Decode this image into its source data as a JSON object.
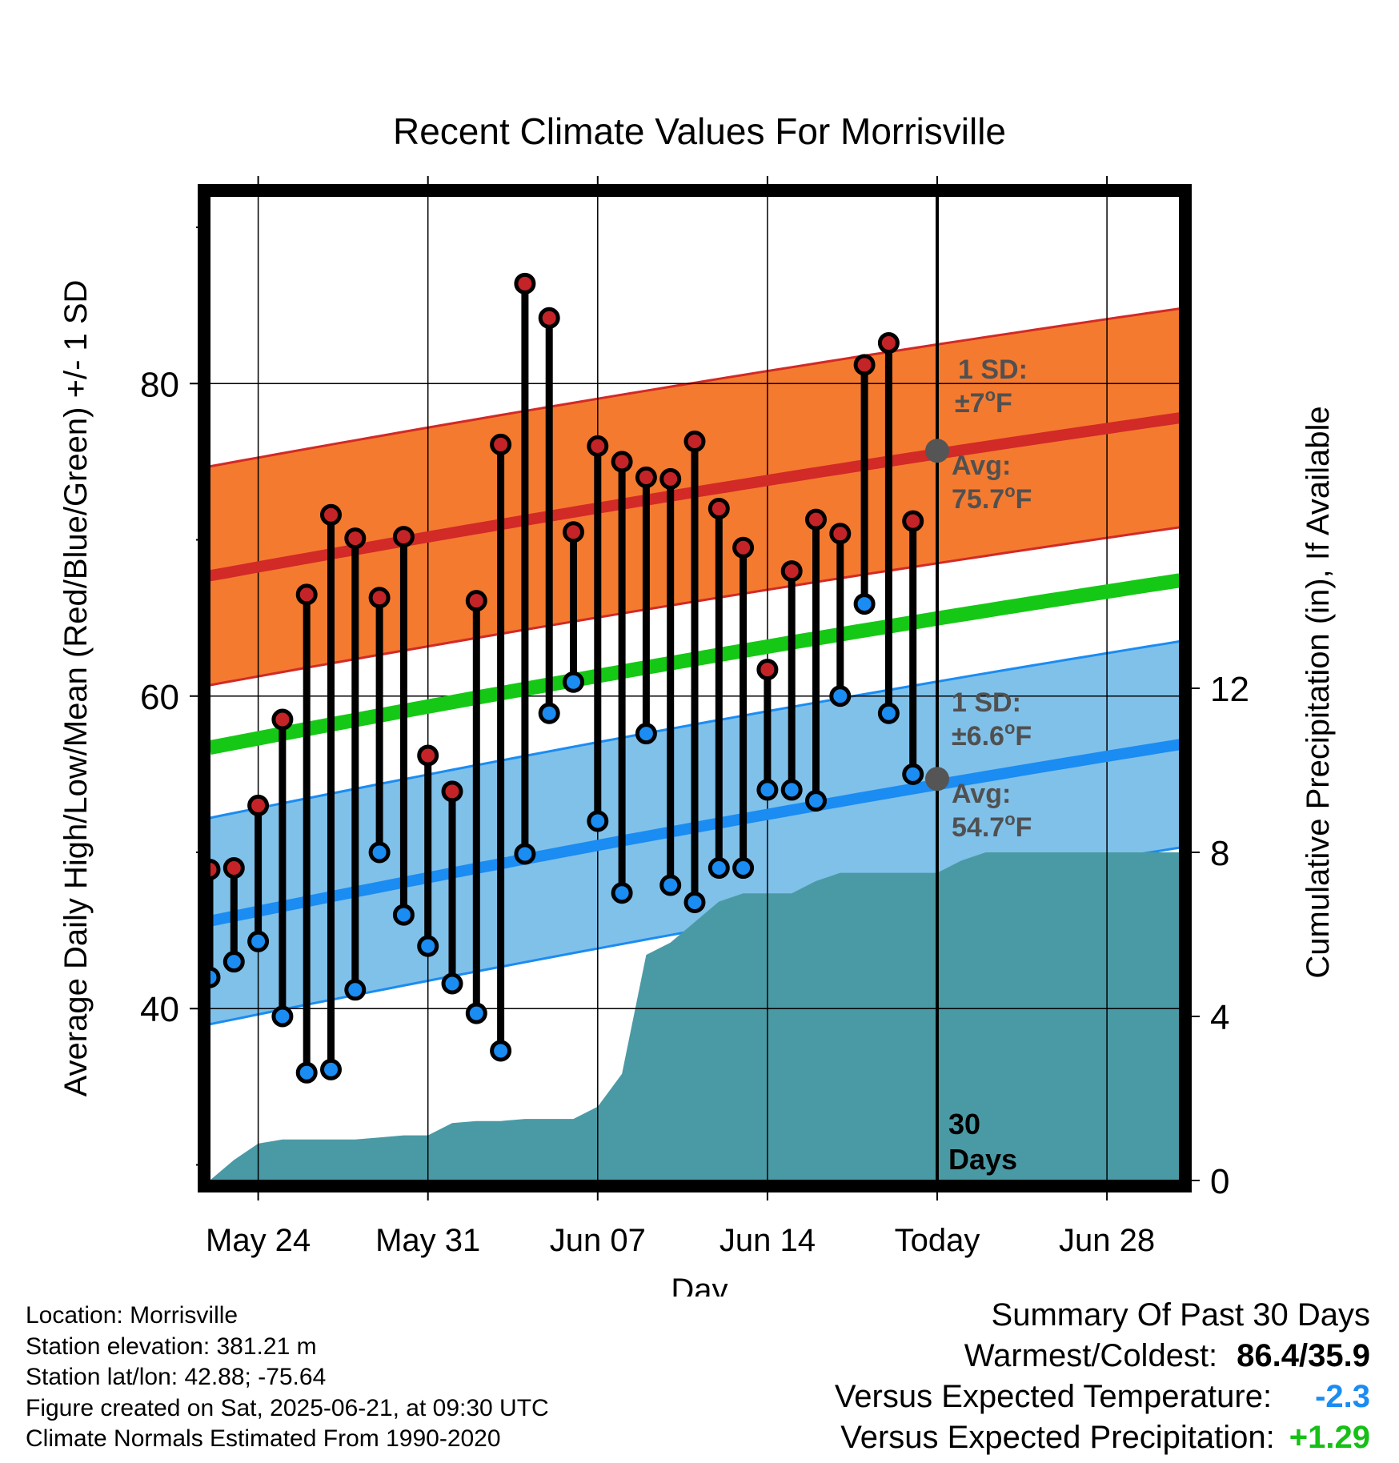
{
  "chart_data": {
    "type": "line",
    "title": "Recent Climate Values For Morrisville",
    "xlabel": "Day",
    "ylabel": "Average Daily High/Low/Mean (Red/Blue/Green) +/- 1 SD",
    "y2label": "Cumulative Precipitation (in), If Available",
    "x_ticks": [
      "May 24",
      "May 31",
      "Jun 07",
      "Jun 14",
      "Today",
      "Jun 28"
    ],
    "x_tick_days": [
      3,
      10,
      17,
      24,
      31,
      38
    ],
    "xlim": [
      1,
      41
    ],
    "ylim": [
      29,
      92
    ],
    "y_ticks": [
      40,
      60,
      80
    ],
    "y2lim": [
      0,
      24
    ],
    "y2_ticks": [
      0,
      4,
      8,
      12
    ],
    "today_day": 31,
    "today_text": "30 Days",
    "grid": true,
    "daily_highs": [
      48.9,
      49.0,
      53.0,
      58.5,
      66.5,
      71.6,
      70.1,
      66.3,
      70.2,
      56.2,
      53.9,
      66.1,
      76.1,
      86.4,
      84.2,
      70.5,
      76.0,
      75.0,
      74.0,
      73.9,
      76.3,
      72.0,
      69.5,
      61.7,
      68.0,
      71.3,
      70.4,
      81.2,
      82.6,
      71.2
    ],
    "daily_lows": [
      42.0,
      43.0,
      44.3,
      39.5,
      35.9,
      36.1,
      41.2,
      50.0,
      46.0,
      44.0,
      41.6,
      39.7,
      37.3,
      49.9,
      58.9,
      60.9,
      52.0,
      47.4,
      57.6,
      47.9,
      46.8,
      49.0,
      49.0,
      54.0,
      54.0,
      53.3,
      60.0,
      65.9,
      58.9,
      55.0
    ],
    "normal_high": {
      "start": 67.7,
      "end": 77.8,
      "today": 75.7,
      "sd": 7.0
    },
    "normal_low": {
      "start": 45.6,
      "end": 56.9,
      "today": 54.7,
      "sd": 6.6
    },
    "normal_mean": {
      "start": 56.7,
      "end": 67.4
    },
    "precip_cumulative": [
      0.0,
      0.5,
      0.9,
      1.0,
      1.0,
      1.0,
      1.0,
      1.05,
      1.1,
      1.1,
      1.4,
      1.45,
      1.45,
      1.5,
      1.5,
      1.5,
      1.8,
      2.6,
      5.5,
      5.8,
      6.3,
      6.8,
      7.0,
      7.0,
      7.0,
      7.3,
      7.5,
      7.5,
      7.5,
      7.5,
      7.5,
      7.8,
      8.0,
      8.0
    ],
    "precip_final": 8.0,
    "annotations": {
      "high_sd": "1 SD:",
      "high_sd_val": "±7",
      "high_avg": "Avg:",
      "high_avg_val": "75.7",
      "low_sd": "1 SD:",
      "low_sd_val": "±6.6",
      "low_avg": "Avg:",
      "low_avg_val": "54.7",
      "deg_unit_o": "o",
      "deg_unit_F": "F"
    },
    "colors": {
      "high_band": "#f47a30",
      "high_line": "#d22a26",
      "low_band": "#80c1ea",
      "low_line": "#1a8cf2",
      "mean_line": "#16c816",
      "precip": "#4a9aa5",
      "high_dot": "#c42427",
      "low_dot": "#1a8cf2",
      "annot_text": "#505050"
    }
  },
  "footer": {
    "location": "Location: Morrisville",
    "elevation": "Station elevation: 381.21 m",
    "latlon": "Station lat/lon: 42.88; -75.64",
    "created": "Figure created on Sat, 2025-06-21, at 09:30 UTC",
    "normals": "Climate Normals Estimated From 1990-2020"
  },
  "summary": {
    "title": "Summary Of Past 30 Days",
    "warmest_label": "Warmest/Coldest:",
    "warmest_value": "86.4/35.9",
    "temp_label": "Versus Expected Temperature:",
    "temp_value": "-2.3",
    "temp_color": "#1a8cf2",
    "precip_label": "Versus Expected Precipitation:",
    "precip_value": "+1.29",
    "precip_color": "#16c016"
  }
}
